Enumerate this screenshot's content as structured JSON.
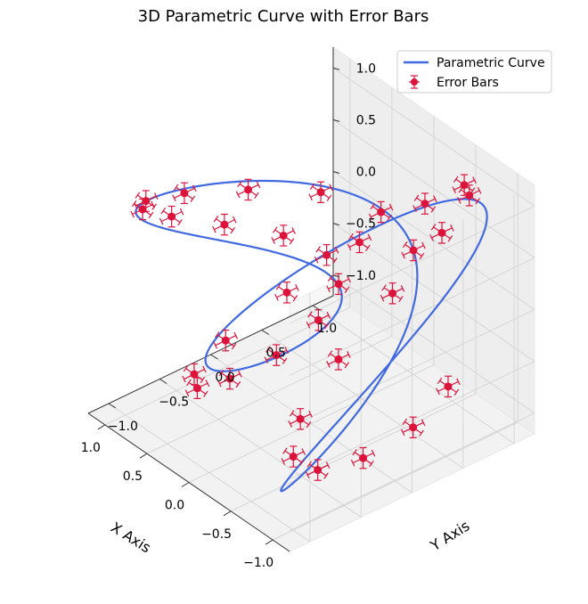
{
  "chart_data": {
    "type": "scatter",
    "title": "3D Parametric Curve with Error Bars",
    "xlabel": "X Axis",
    "ylabel": "Y Axis",
    "zlabel": "",
    "xlim": [
      -1.2,
      1.2
    ],
    "ylim": [
      -1.2,
      1.2
    ],
    "zlim": [
      -1.2,
      1.2
    ],
    "x_ticks": [
      "−1.0",
      "−0.5",
      "0.0",
      "0.5",
      "1.0"
    ],
    "y_ticks": [
      "−1.0",
      "−0.5",
      "0.0",
      "0.5",
      "1.0"
    ],
    "z_ticks": [
      "−1.0",
      "−0.5",
      "0.0",
      "0.5",
      "1.0"
    ],
    "grid": true,
    "legend_position": "top-right",
    "colors": {
      "curve": "#4169e1",
      "errorbars": "#dc143c"
    },
    "error": {
      "x": 0.1,
      "y": 0.1,
      "z": 0.1
    },
    "series": [
      {
        "name": "Parametric Curve",
        "type": "line",
        "equation": {
          "x": "sin(t)",
          "y": "cos(3t)",
          "z": "sin(2t)",
          "t_range": "[0, 2π]"
        }
      },
      {
        "name": "Error Bars",
        "type": "errorbar",
        "points": [
          [
            0.0,
            1.0,
            0.0
          ],
          [
            0.18,
            0.83,
            0.35
          ],
          [
            0.35,
            0.38,
            0.66
          ],
          [
            0.51,
            -0.2,
            0.87
          ],
          [
            0.65,
            -0.71,
            1.0
          ],
          [
            0.78,
            -0.98,
            0.98
          ],
          [
            0.88,
            -0.93,
            0.82
          ],
          [
            0.96,
            -0.58,
            0.54
          ],
          [
            1.0,
            -0.03,
            0.18
          ],
          [
            0.99,
            0.54,
            -0.19
          ],
          [
            0.95,
            0.93,
            -0.54
          ],
          [
            0.88,
            0.99,
            -0.81
          ],
          [
            0.78,
            0.71,
            -0.97
          ],
          [
            0.66,
            0.2,
            -1.0
          ],
          [
            0.51,
            -0.38,
            -0.87
          ],
          [
            0.35,
            -0.83,
            -0.66
          ],
          [
            0.18,
            -1.0,
            -0.35
          ],
          [
            0.0,
            -0.84,
            0.0
          ],
          [
            -0.17,
            -0.38,
            0.34
          ],
          [
            -0.33,
            0.2,
            0.64
          ],
          [
            -0.49,
            0.71,
            0.86
          ],
          [
            -0.63,
            0.98,
            0.99
          ],
          [
            -0.75,
            0.93,
            0.98
          ],
          [
            -0.85,
            0.58,
            0.84
          ],
          [
            -0.93,
            0.03,
            0.56
          ],
          [
            -0.98,
            -0.54,
            0.22
          ],
          [
            -1.0,
            -0.93,
            -0.16
          ],
          [
            -0.99,
            -0.99,
            -0.5
          ],
          [
            -0.94,
            -0.71,
            -0.79
          ],
          [
            -0.86,
            -0.2,
            -0.96
          ],
          [
            -0.75,
            0.38,
            -1.0
          ],
          [
            -0.62,
            0.83,
            -0.89
          ]
        ]
      }
    ]
  }
}
